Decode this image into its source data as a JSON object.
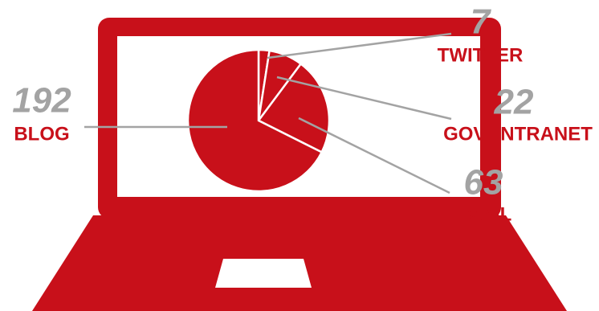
{
  "chart_data": {
    "type": "pie",
    "categories": [
      "TWITTER",
      "GOV. INTRANET",
      "EMAIL",
      "BLOG"
    ],
    "values": [
      7,
      22,
      63,
      192
    ],
    "color": "#c8101a"
  }
}
